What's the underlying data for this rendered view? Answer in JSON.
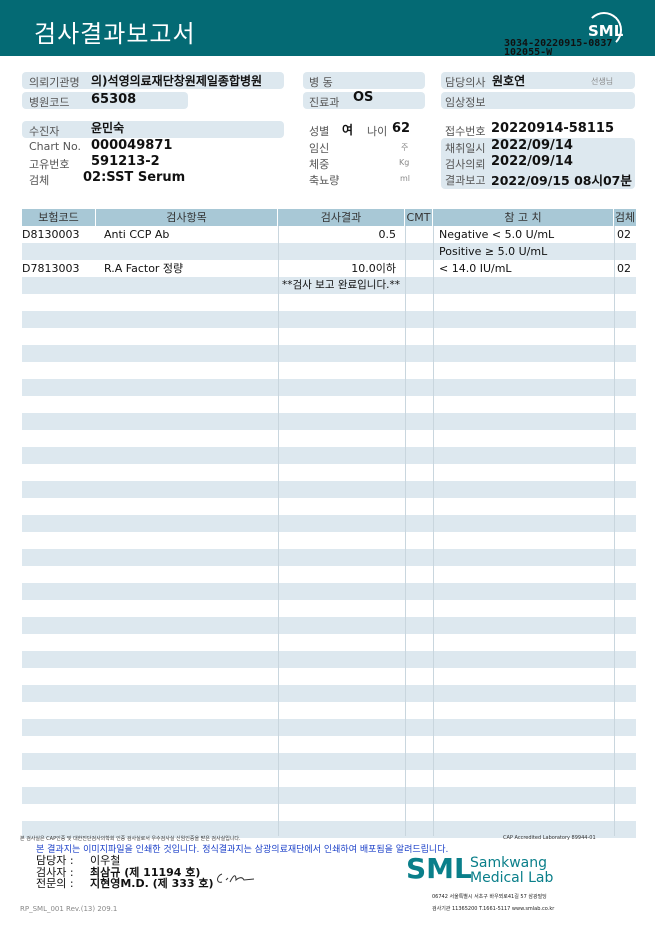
{
  "header": {
    "title": "검사결과보고서",
    "logo": "SML",
    "report_id": "3034-20220915-0837",
    "report_sub": "102055-W"
  },
  "info": {
    "requester_label": "의뢰기관명",
    "requester": "의)석영의료재단창원제일종합병원",
    "hospital_code_label": "병원코드",
    "hospital_code": "65308",
    "ward_label": "병  동",
    "ward": "",
    "dept_label": "진료과",
    "dept": "OS",
    "doctor_label": "담당의사",
    "doctor": "원호연",
    "doctor_suffix": "선생님",
    "clinical_label": "임상정보",
    "clinical": "",
    "patient_label": "수진자",
    "patient": "윤민숙",
    "chart_label": "Chart No.",
    "chart": "000049871",
    "id_label": "고유번호",
    "id": "591213-2",
    "specimen_label": "검체",
    "specimen": "02:SST Serum",
    "sex_label": "성별",
    "sex": "여",
    "age_label": "나이",
    "age": "62",
    "pregnancy_label": "임신",
    "pregnancy_unit": "주",
    "weight_label": "체중",
    "weight_unit": "Kg",
    "urine_label": "축뇨량",
    "urine_unit": "ml",
    "receipt_label": "접수번호",
    "receipt": "20220914-58115",
    "collect_label": "채취일시",
    "collect": "2022/09/14",
    "request_label": "검사의뢰",
    "request": "2022/09/14",
    "report_label": "결과보고",
    "report": "2022/09/15 08시07분"
  },
  "table": {
    "headers": [
      "보험코드",
      "검사항목",
      "검사결과",
      "CMT",
      "참 고 치",
      "검체"
    ],
    "rows": [
      {
        "code": "D8130003",
        "item": "Anti CCP Ab",
        "result": "0.5",
        "cmt": "",
        "ref": "Negative < 5.0 U/mL",
        "specimen": "02"
      },
      {
        "code": "",
        "item": "",
        "result": "",
        "cmt": "",
        "ref": "Positive ≥ 5.0 U/mL",
        "specimen": ""
      },
      {
        "code": "D7813003",
        "item": "R.A Factor 정량",
        "result": "10.0이하",
        "cmt": "",
        "ref": "< 14.0 IU/mL",
        "specimen": "02"
      }
    ],
    "completion": "**검사  보고  완료입니다.**"
  },
  "footer": {
    "cert_note": "본 검사실은 CAP인증 및 대한진단검사의학회 인증 검사실로서 우수검사실 신임인증을 받은 검사실입니다.",
    "cap": "CAP Accredited Laboratory 89944-01",
    "notice": "본 결과지는 이미지파일을 인쇄한 것입니다. 정식결과지는 삼광의료재단에서 인쇄하여 배포됨을 알려드립니다.",
    "staff_label": "담당자 :",
    "staff": "이우철",
    "tester_label": "검사자 :",
    "tester": "최삼규 (제 11194 호)",
    "specialist_label": "전문의 :",
    "specialist": "지현영M.D. (제 333 호)",
    "brand_logo": "SML",
    "brand_line1": "Samkwang",
    "brand_line2": "Medical Lab",
    "address": "06742 서울특별시 서초구 바우뫼로41길 57 삼광빌딩",
    "contact": "검사기관 11365200 T.1661-5117 www.smlab.co.kr",
    "form_id": "RP_SML_001 Rev.(13) 209.1"
  }
}
